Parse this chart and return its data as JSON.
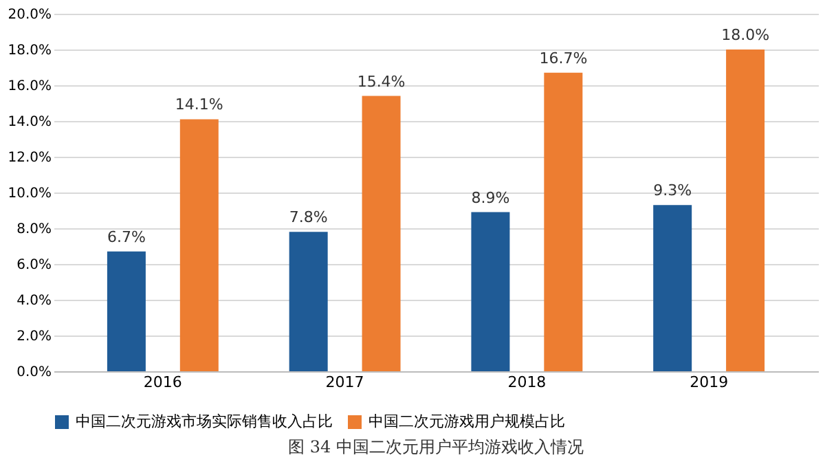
{
  "chart_data": {
    "type": "bar",
    "categories": [
      "2016",
      "2017",
      "2018",
      "2019"
    ],
    "series": [
      {
        "name": "中国二次元游戏市场实际销售收入占比",
        "color": "#1f5b96",
        "values": [
          6.7,
          7.8,
          8.9,
          9.3
        ],
        "value_labels": [
          "6.7%",
          "7.8%",
          "8.9%",
          "9.3%"
        ]
      },
      {
        "name": "中国二次元游戏用户规模占比",
        "color": "#ed7d31",
        "values": [
          14.1,
          15.4,
          16.7,
          18.0
        ],
        "value_labels": [
          "14.1%",
          "15.4%",
          "16.7%",
          "18.0%"
        ]
      }
    ],
    "ylim": [
      0,
      20
    ],
    "yticks": [
      {
        "value": 0,
        "label": "0.0%"
      },
      {
        "value": 2,
        "label": "2.0%"
      },
      {
        "value": 4,
        "label": "4.0%"
      },
      {
        "value": 6,
        "label": "6.0%"
      },
      {
        "value": 8,
        "label": "8.0%"
      },
      {
        "value": 10,
        "label": "10.0%"
      },
      {
        "value": 12,
        "label": "12.0%"
      },
      {
        "value": 14,
        "label": "14.0%"
      },
      {
        "value": 16,
        "label": "16.0%"
      },
      {
        "value": 18,
        "label": "18.0%"
      },
      {
        "value": 20,
        "label": "20.0%"
      }
    ],
    "grid": "y",
    "legend": "bottom",
    "annotations": [
      "图 34 中国二次元用户平均游戏收入情况"
    ]
  }
}
